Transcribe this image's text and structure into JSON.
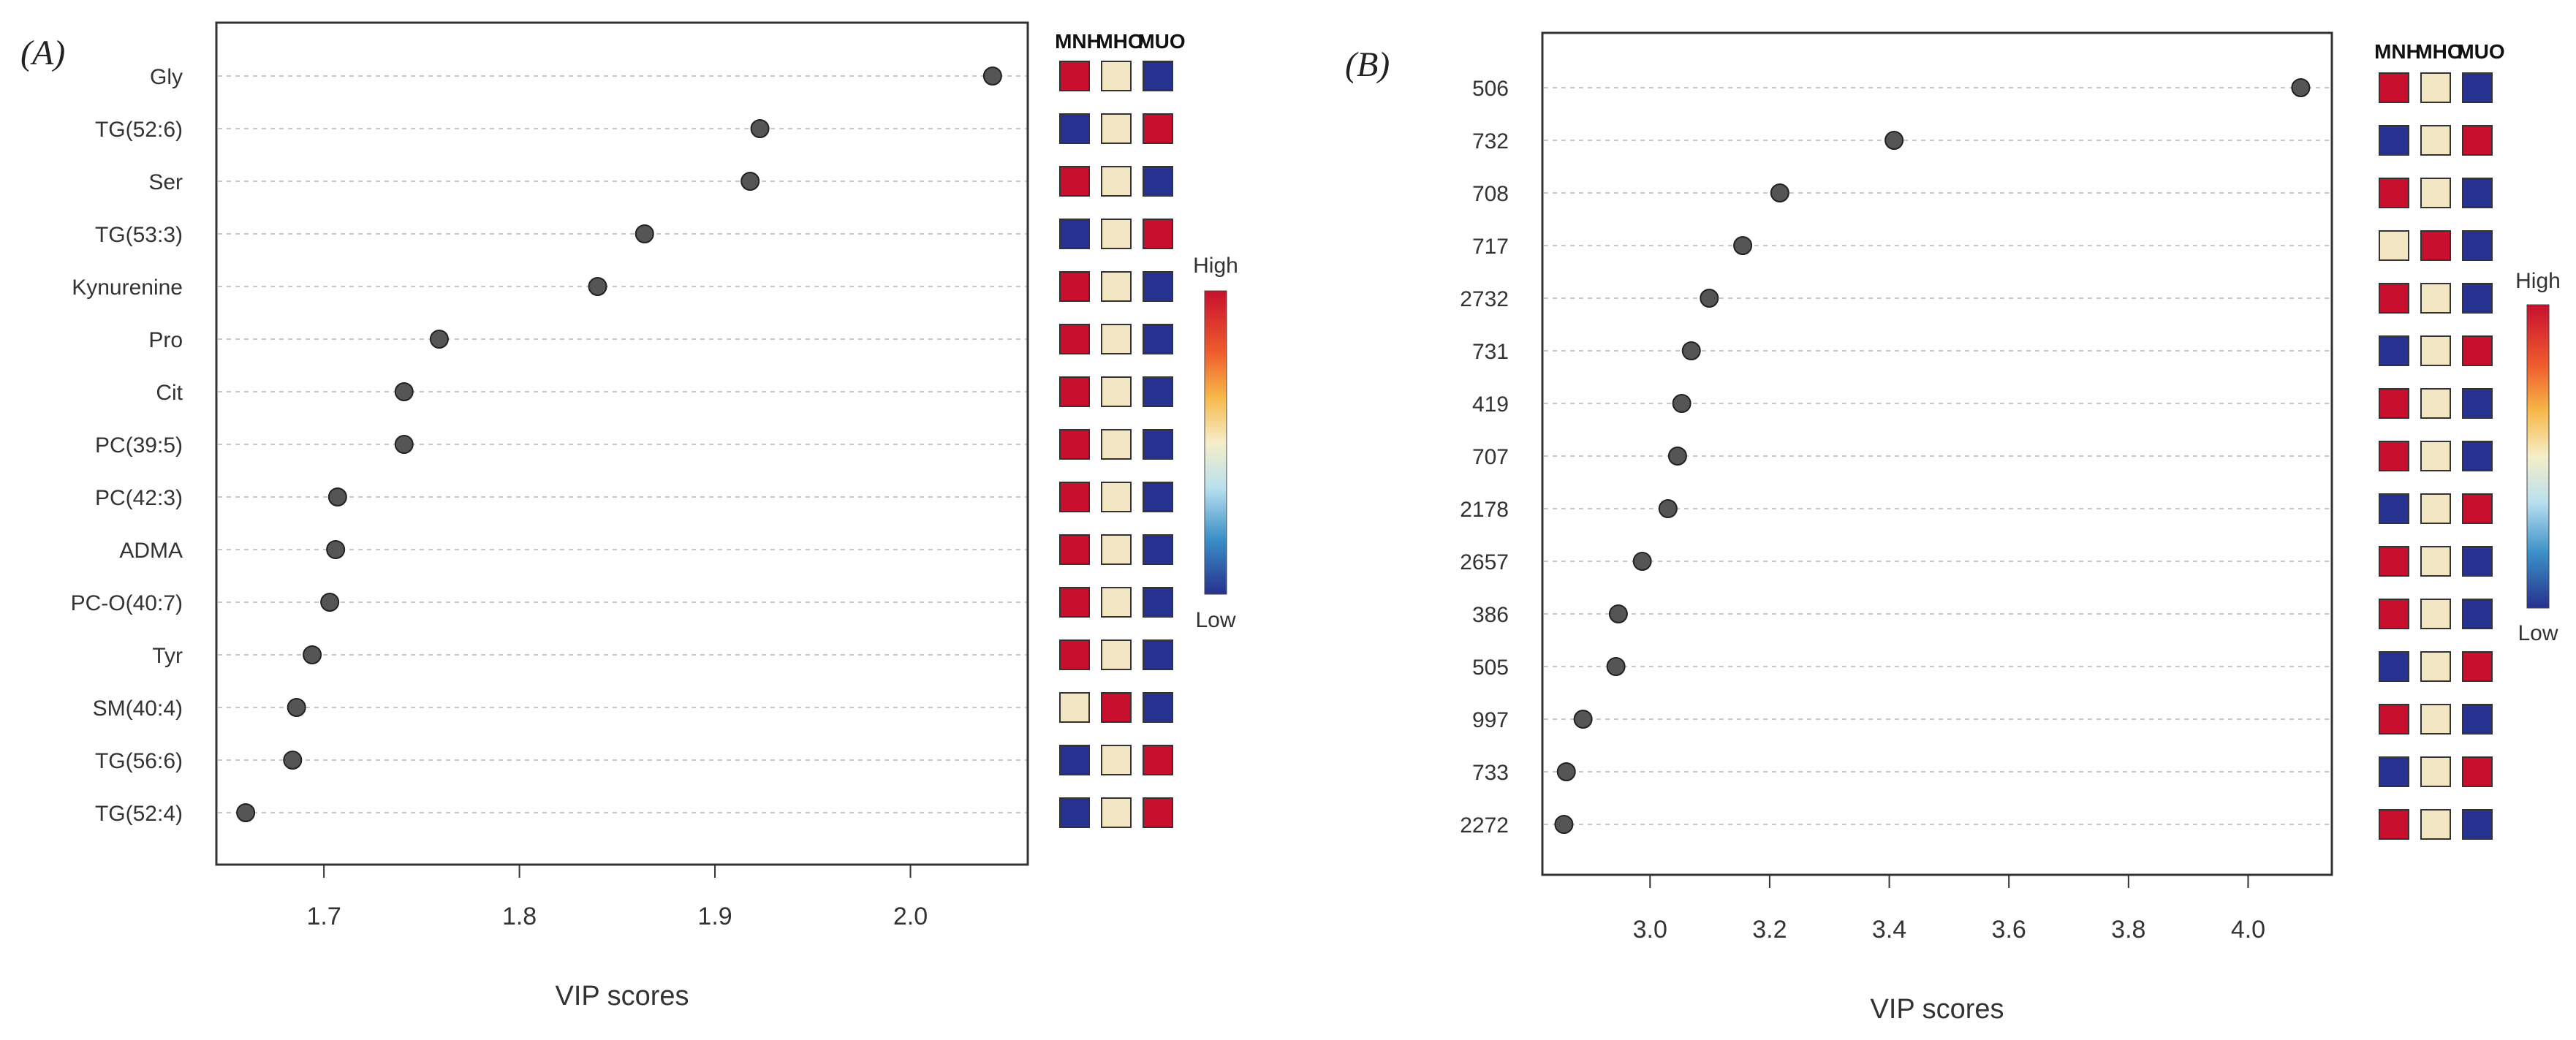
{
  "chart_data": [
    {
      "type": "scatter",
      "panel_label": "(A)",
      "xlabel": "VIP scores",
      "ylabel": "",
      "xlim": [
        1.645,
        2.06
      ],
      "xticks": [
        1.7,
        1.8,
        1.9,
        2.0
      ],
      "x_tick_labels": [
        "1.7",
        "1.8",
        "1.9",
        "2.0"
      ],
      "grid": "horizontal dashed",
      "categories": [
        "Gly",
        "TG(52:6)",
        "Ser",
        "TG(53:3)",
        "Kynurenine",
        "Pro",
        "Cit",
        "PC(39:5)",
        "PC(42:3)",
        "ADMA",
        "PC-O(40:7)",
        "Tyr",
        "SM(40:4)",
        "TG(56:6)",
        "TG(52:4)"
      ],
      "values": [
        2.042,
        1.923,
        1.918,
        1.864,
        1.84,
        1.759,
        1.741,
        1.741,
        1.707,
        1.706,
        1.703,
        1.694,
        1.686,
        1.684,
        1.66
      ],
      "heatmap_columns": [
        "MNH",
        "MHO",
        "MUO"
      ],
      "heatmap_levels": [
        [
          "high",
          "mid",
          "low"
        ],
        [
          "low",
          "mid",
          "high"
        ],
        [
          "high",
          "mid",
          "low"
        ],
        [
          "low",
          "mid",
          "high"
        ],
        [
          "high",
          "mid",
          "low"
        ],
        [
          "high",
          "mid",
          "low"
        ],
        [
          "high",
          "mid",
          "low"
        ],
        [
          "high",
          "mid",
          "low"
        ],
        [
          "high",
          "mid",
          "low"
        ],
        [
          "high",
          "mid",
          "low"
        ],
        [
          "high",
          "mid",
          "low"
        ],
        [
          "high",
          "mid",
          "low"
        ],
        [
          "mid",
          "high",
          "low"
        ],
        [
          "low",
          "mid",
          "high"
        ],
        [
          "low",
          "mid",
          "high"
        ]
      ],
      "legend": {
        "high_label": "High",
        "low_label": "Low"
      }
    },
    {
      "type": "scatter",
      "panel_label": "(B)",
      "xlabel": "VIP scores",
      "ylabel": "",
      "xlim": [
        2.82,
        4.14
      ],
      "xticks": [
        3.0,
        3.2,
        3.4,
        3.6,
        3.8,
        4.0
      ],
      "x_tick_labels": [
        "3.0",
        "3.2",
        "3.4",
        "3.6",
        "3.8",
        "4.0"
      ],
      "grid": "horizontal dashed",
      "categories": [
        "506",
        "732",
        "708",
        "717",
        "2732",
        "731",
        "419",
        "707",
        "2178",
        "2657",
        "386",
        "505",
        "997",
        "733",
        "2272"
      ],
      "values": [
        4.088,
        3.408,
        3.217,
        3.155,
        3.099,
        3.069,
        3.053,
        3.046,
        3.03,
        2.987,
        2.947,
        2.943,
        2.888,
        2.86,
        2.856
      ],
      "heatmap_columns": [
        "MNH",
        "MHO",
        "MUO"
      ],
      "heatmap_levels": [
        [
          "high",
          "mid",
          "low"
        ],
        [
          "low",
          "mid",
          "high"
        ],
        [
          "high",
          "mid",
          "low"
        ],
        [
          "mid",
          "high",
          "low"
        ],
        [
          "high",
          "mid",
          "low"
        ],
        [
          "low",
          "mid",
          "high"
        ],
        [
          "high",
          "mid",
          "low"
        ],
        [
          "high",
          "mid",
          "low"
        ],
        [
          "low",
          "mid",
          "high"
        ],
        [
          "high",
          "mid",
          "low"
        ],
        [
          "high",
          "mid",
          "low"
        ],
        [
          "low",
          "mid",
          "high"
        ],
        [
          "high",
          "mid",
          "low"
        ],
        [
          "low",
          "mid",
          "high"
        ],
        [
          "high",
          "mid",
          "low"
        ]
      ],
      "legend": {
        "high_label": "High",
        "low_label": "Low"
      }
    }
  ],
  "colors": {
    "high": "#c8102e",
    "mid": "#f3e7c3",
    "low": "#27318f",
    "point": "#555555",
    "grid": "#c8c8c8",
    "axis": "#333333",
    "text": "#333333"
  }
}
